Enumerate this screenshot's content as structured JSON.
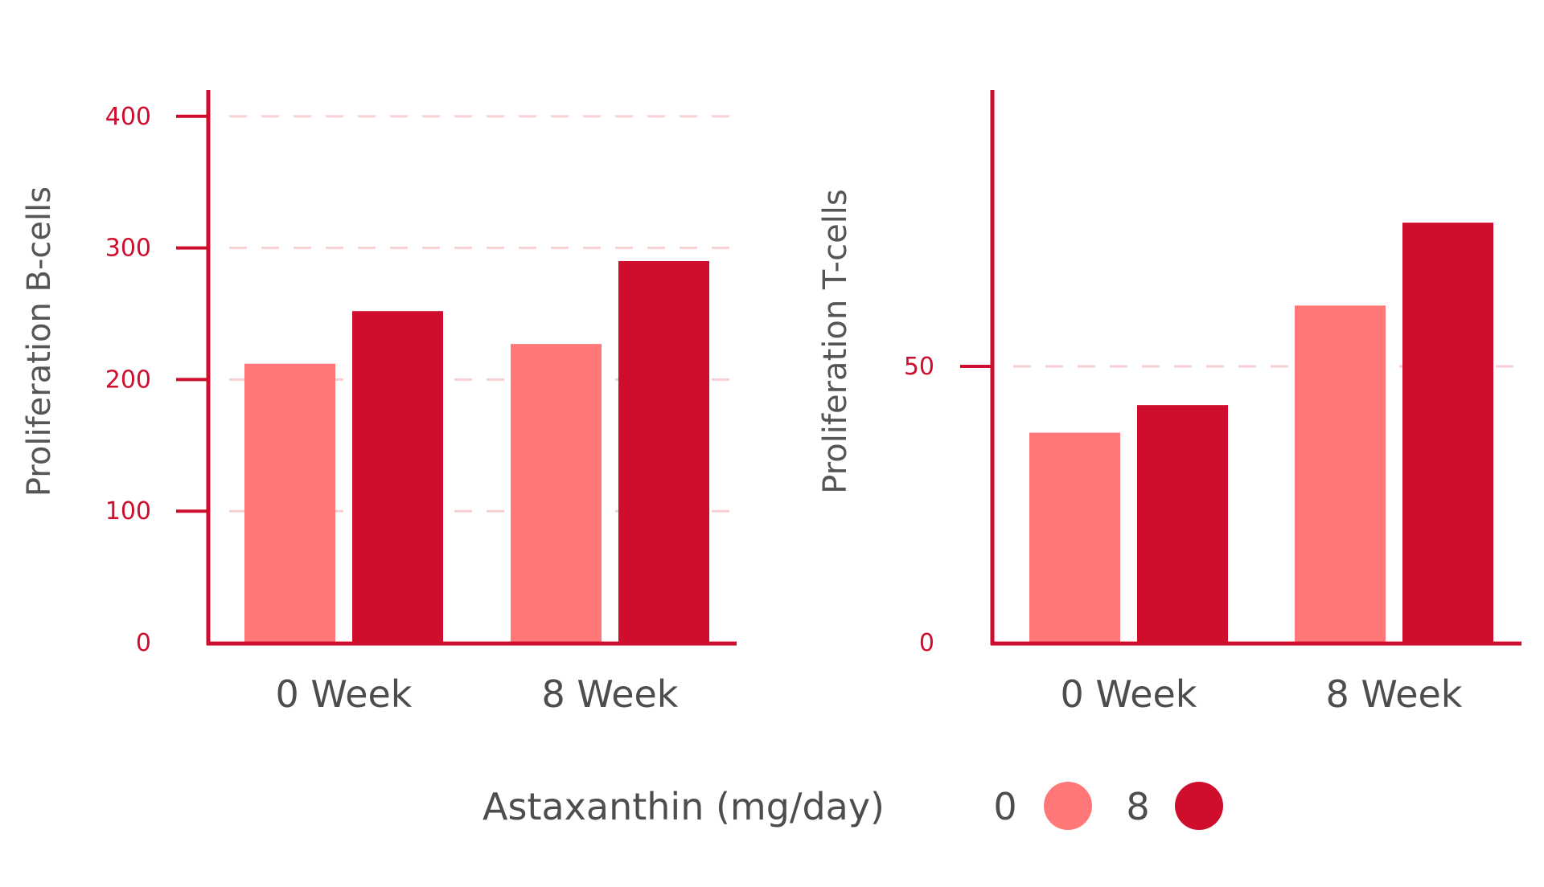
{
  "chart_data": [
    {
      "type": "bar",
      "categories": [
        "0 Week",
        "8 Week"
      ],
      "series": [
        {
          "name": "0",
          "values": [
            212,
            227
          ]
        },
        {
          "name": "8",
          "values": [
            252,
            290
          ]
        }
      ],
      "ylabel": "Proliferation B-cells",
      "yticks": [
        0,
        100,
        200,
        300,
        400
      ],
      "ylim": [
        0,
        420
      ],
      "grid": "dashed horizontal"
    },
    {
      "type": "bar",
      "categories": [
        "0 Week",
        "8 Week"
      ],
      "series": [
        {
          "name": "0",
          "values": [
            38,
            61
          ]
        },
        {
          "name": "8",
          "values": [
            43,
            76
          ]
        }
      ],
      "ylabel": "Proliferation T-cells",
      "yticks": [
        0,
        50
      ],
      "ylim": [
        0,
        100
      ],
      "grid": "dashed horizontal"
    }
  ],
  "legend": {
    "title": "Astaxanthin (mg/day)",
    "items": [
      {
        "label": "0",
        "color": "#ff7777"
      },
      {
        "label": "8",
        "color": "#cf0e2e"
      }
    ],
    "placement": "bottom"
  },
  "colors": {
    "axis": "#cf0e2e",
    "grid": "#f7d0d3",
    "series_light": "#ff7777",
    "series_dark": "#cf0e2e"
  }
}
